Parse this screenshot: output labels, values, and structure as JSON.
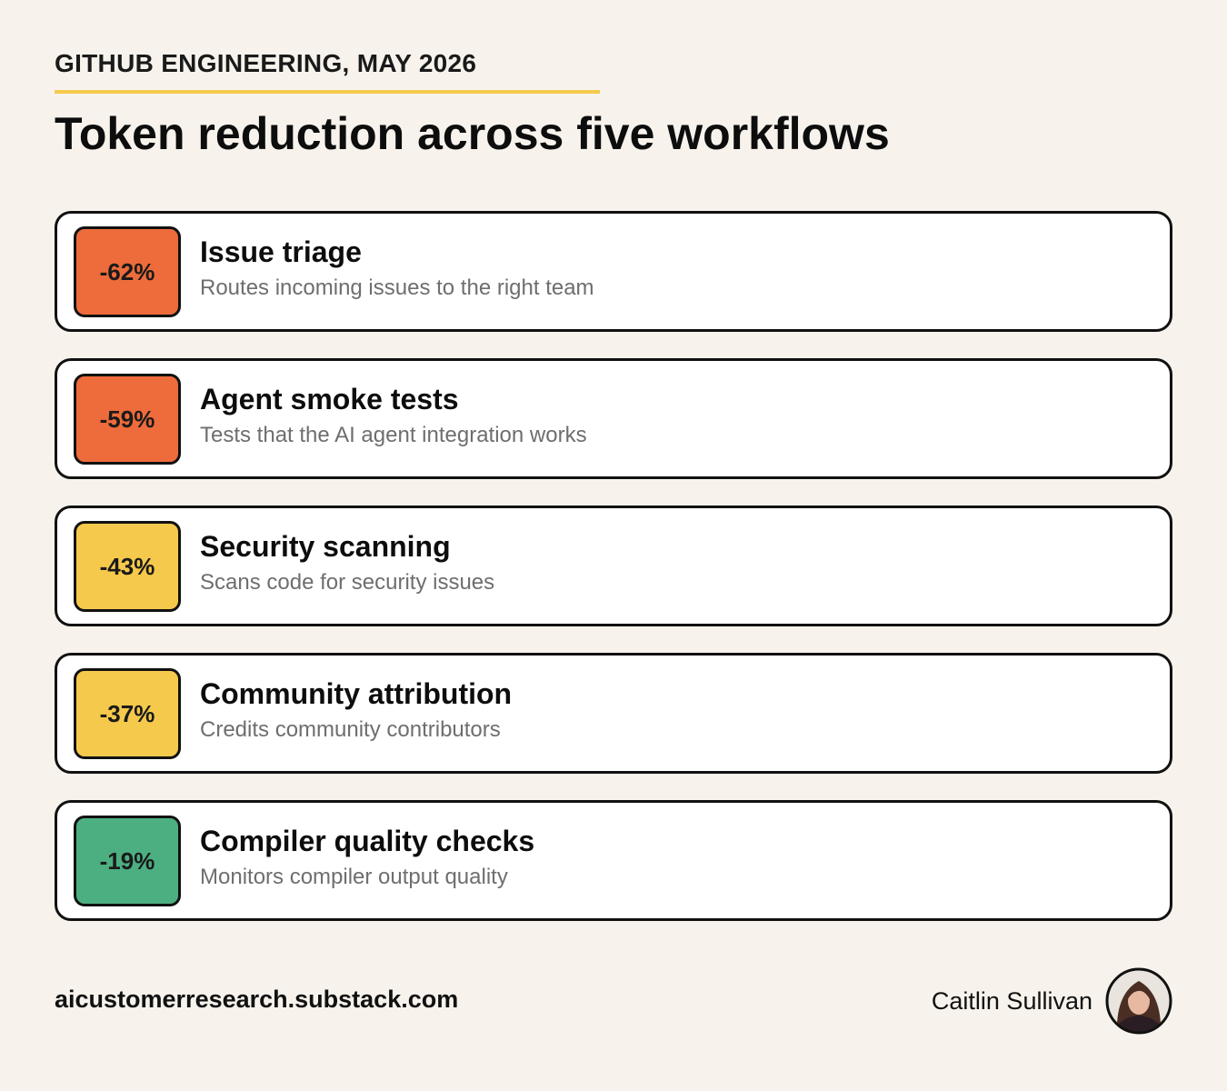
{
  "header": {
    "eyebrow": "GITHUB ENGINEERING, MAY 2026",
    "title": "Token reduction across five workflows"
  },
  "workflows": [
    {
      "badge": "-62%",
      "color": "#ee6b3b",
      "title": "Issue triage",
      "description": "Routes incoming issues to the right team"
    },
    {
      "badge": "-59%",
      "color": "#ee6b3b",
      "title": "Agent smoke tests",
      "description": "Tests that the AI agent integration works"
    },
    {
      "badge": "-43%",
      "color": "#f5c94b",
      "title": "Security scanning",
      "description": "Scans code for security issues"
    },
    {
      "badge": "-37%",
      "color": "#f5c94b",
      "title": "Community attribution",
      "description": "Credits community contributors"
    },
    {
      "badge": "-19%",
      "color": "#4caf82",
      "title": "Compiler quality checks",
      "description": "Monitors compiler output quality"
    }
  ],
  "footer": {
    "url": "aicustomerresearch.substack.com",
    "author": "Caitlin Sullivan"
  }
}
